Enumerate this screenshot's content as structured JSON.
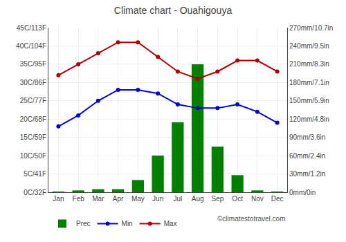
{
  "chart_data": {
    "type": "bar",
    "title": "Climate chart - Ouahigouya",
    "categories": [
      "Jan",
      "Feb",
      "Mar",
      "Apr",
      "May",
      "Jun",
      "Jul",
      "Aug",
      "Sep",
      "Oct",
      "Nov",
      "Dec"
    ],
    "series": [
      {
        "name": "Prec",
        "type": "bar",
        "axis": "y2",
        "color": "#008000",
        "values": [
          1,
          3,
          5,
          5,
          20,
          60,
          115,
          210,
          75,
          28,
          3,
          1
        ]
      },
      {
        "name": "Min",
        "type": "line",
        "marker": "circle",
        "color": "#0000cc",
        "values": [
          18,
          21,
          25,
          28,
          28,
          27,
          24,
          23,
          23,
          24,
          22,
          19
        ]
      },
      {
        "name": "Max",
        "type": "line",
        "marker": "circle",
        "color": "#aa0000",
        "values": [
          32,
          35,
          38,
          41,
          41,
          37,
          33,
          31,
          33,
          36,
          36,
          33
        ]
      }
    ],
    "ylim": [
      0,
      45
    ],
    "yticks": [
      {
        "value": 0,
        "label": "0C/32F"
      },
      {
        "value": 5,
        "label": "5C/41F"
      },
      {
        "value": 10,
        "label": "10C/50F"
      },
      {
        "value": 15,
        "label": "15C/59F"
      },
      {
        "value": 20,
        "label": "20C/68F"
      },
      {
        "value": 25,
        "label": "25C/77F"
      },
      {
        "value": 30,
        "label": "30C/86F"
      },
      {
        "value": 35,
        "label": "35C/95F"
      },
      {
        "value": 40,
        "label": "40C/104F"
      },
      {
        "value": 45,
        "label": "45C/113F"
      }
    ],
    "y2lim": [
      0,
      270
    ],
    "y2ticks": [
      {
        "value": 0,
        "label": "0mm/0in"
      },
      {
        "value": 30,
        "label": "30mm/1.2in"
      },
      {
        "value": 60,
        "label": "60mm/2.4in"
      },
      {
        "value": 90,
        "label": "90mm/3.6in"
      },
      {
        "value": 120,
        "label": "120mm/4.8in"
      },
      {
        "value": 150,
        "label": "150mm/5.9in"
      },
      {
        "value": 180,
        "label": "180mm/7.1in"
      },
      {
        "value": 210,
        "label": "210mm/8.3in"
      },
      {
        "value": 240,
        "label": "240mm/9.5in"
      },
      {
        "value": 270,
        "label": "270mm/10.7in"
      }
    ],
    "grid": true,
    "legend": "lower left",
    "annotations": [
      "©climatestotravel.com"
    ]
  }
}
